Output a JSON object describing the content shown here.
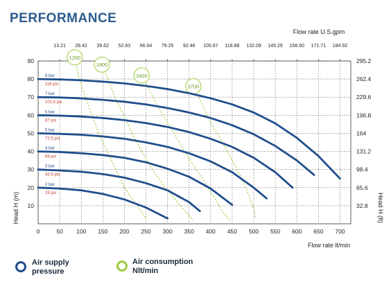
{
  "title": "PERFORMANCE",
  "colors": {
    "pressure": "#1f4e8c",
    "air": "#9ccc3c",
    "psi_text": "#c0392b",
    "title": "#2a5b8f",
    "grid": "#555555"
  },
  "chart_data": {
    "type": "line",
    "xlabel": "Flow rate  lt/min",
    "x2label": "Flow rate U.S.gpm",
    "ylabel": "Head H (m)",
    "y2label": "Head H (ft)",
    "xlim": [
      0,
      725
    ],
    "ylim": [
      0,
      90
    ],
    "xticks": [
      0,
      50,
      100,
      150,
      200,
      250,
      300,
      350,
      400,
      450,
      500,
      550,
      600,
      650,
      700
    ],
    "yticks": [
      10,
      20,
      30,
      40,
      50,
      60,
      70,
      80,
      90
    ],
    "x2ticks": [
      "13.21",
      "26.42",
      "39.62",
      "52.83",
      "66.04",
      "79.25",
      "92.46",
      "105.67",
      "118.88",
      "132.09",
      "145.29",
      "158.50",
      "171.71",
      "184.92"
    ],
    "y2ticks": [
      "295.2",
      "262.4",
      "229.6",
      "196.8",
      "164",
      "131.2",
      "98.4",
      "65.6",
      "32.8"
    ],
    "grid": true,
    "series": [
      {
        "name": "2 bar",
        "psi": "29 psi",
        "points": [
          [
            0,
            20
          ],
          [
            50,
            19.5
          ],
          [
            100,
            18.5
          ],
          [
            150,
            16.5
          ],
          [
            200,
            13.5
          ],
          [
            250,
            9
          ],
          [
            300,
            3
          ]
        ]
      },
      {
        "name": "3 bar",
        "psi": "43.5 psi",
        "points": [
          [
            0,
            30
          ],
          [
            50,
            29.5
          ],
          [
            100,
            28.8
          ],
          [
            150,
            27.5
          ],
          [
            200,
            25.5
          ],
          [
            250,
            22.5
          ],
          [
            300,
            18.5
          ],
          [
            350,
            12
          ],
          [
            375,
            7
          ]
        ]
      },
      {
        "name": "4 bar",
        "psi": "58 psi",
        "points": [
          [
            0,
            40
          ],
          [
            50,
            39.7
          ],
          [
            100,
            39
          ],
          [
            150,
            38
          ],
          [
            200,
            36.5
          ],
          [
            250,
            34
          ],
          [
            300,
            30.5
          ],
          [
            350,
            26
          ],
          [
            400,
            19.5
          ],
          [
            450,
            10.5
          ]
        ]
      },
      {
        "name": "5 bar",
        "psi": "72.5 psi",
        "points": [
          [
            0,
            50
          ],
          [
            50,
            49.7
          ],
          [
            100,
            49.2
          ],
          [
            150,
            48.3
          ],
          [
            200,
            47
          ],
          [
            250,
            45
          ],
          [
            300,
            42.5
          ],
          [
            350,
            39
          ],
          [
            400,
            34.5
          ],
          [
            450,
            28.5
          ],
          [
            500,
            20
          ],
          [
            530,
            14
          ]
        ]
      },
      {
        "name": "6 bar",
        "psi": "87 psi",
        "points": [
          [
            0,
            60
          ],
          [
            50,
            59.8
          ],
          [
            100,
            59.3
          ],
          [
            150,
            58.5
          ],
          [
            200,
            57.3
          ],
          [
            250,
            55.7
          ],
          [
            300,
            53.5
          ],
          [
            350,
            50.7
          ],
          [
            400,
            47
          ],
          [
            450,
            42.5
          ],
          [
            500,
            36.5
          ],
          [
            550,
            28.5
          ],
          [
            590,
            20
          ]
        ]
      },
      {
        "name": "7 bar",
        "psi": "101.5 psi",
        "points": [
          [
            0,
            70
          ],
          [
            50,
            69.8
          ],
          [
            100,
            69.3
          ],
          [
            150,
            68.5
          ],
          [
            200,
            67.5
          ],
          [
            250,
            66
          ],
          [
            300,
            64
          ],
          [
            350,
            61.5
          ],
          [
            400,
            58.5
          ],
          [
            450,
            54.5
          ],
          [
            500,
            49.5
          ],
          [
            550,
            43
          ],
          [
            600,
            35
          ],
          [
            640,
            27
          ]
        ]
      },
      {
        "name": "8 bar",
        "psi": "116 psi",
        "points": [
          [
            0,
            80
          ],
          [
            50,
            79.8
          ],
          [
            100,
            79.3
          ],
          [
            150,
            78.6
          ],
          [
            200,
            77.6
          ],
          [
            250,
            76.2
          ],
          [
            300,
            74.5
          ],
          [
            350,
            72.2
          ],
          [
            400,
            69.4
          ],
          [
            450,
            66
          ],
          [
            500,
            61.5
          ],
          [
            550,
            55.5
          ],
          [
            600,
            47.5
          ],
          [
            650,
            37.5
          ],
          [
            700,
            25
          ]
        ]
      }
    ],
    "air_consumption": [
      {
        "name": "1200",
        "points": [
          [
            85,
            92
          ],
          [
            95,
            80
          ],
          [
            110,
            70
          ],
          [
            125,
            60
          ],
          [
            140,
            50
          ],
          [
            160,
            40
          ],
          [
            180,
            30
          ],
          [
            200,
            20
          ],
          [
            230,
            10
          ],
          [
            250,
            3
          ]
        ]
      },
      {
        "name": "1800",
        "points": [
          [
            148,
            88
          ],
          [
            162,
            80
          ],
          [
            178,
            70
          ],
          [
            198,
            60
          ],
          [
            218,
            50
          ],
          [
            240,
            40
          ],
          [
            265,
            30
          ],
          [
            295,
            20
          ],
          [
            330,
            10
          ],
          [
            360,
            2
          ]
        ]
      },
      {
        "name": "2400",
        "points": [
          [
            240,
            82
          ],
          [
            258,
            74
          ],
          [
            275,
            66
          ],
          [
            300,
            56
          ],
          [
            325,
            46
          ],
          [
            350,
            36
          ],
          [
            378,
            26
          ],
          [
            405,
            16
          ],
          [
            430,
            6
          ],
          [
            445,
            2
          ]
        ]
      },
      {
        "name": "3700",
        "points": [
          [
            360,
            76
          ],
          [
            380,
            66
          ],
          [
            400,
            56
          ],
          [
            425,
            46
          ],
          [
            448,
            36
          ],
          [
            470,
            26
          ],
          [
            488,
            16
          ],
          [
            500,
            8
          ],
          [
            505,
            3
          ]
        ]
      }
    ],
    "legend": [
      {
        "key": "pressure",
        "label_line1": "Air supply",
        "label_line2": "pressure"
      },
      {
        "key": "air",
        "label_line1": "Air consumption",
        "label_line2": "Nlt/min"
      }
    ]
  }
}
